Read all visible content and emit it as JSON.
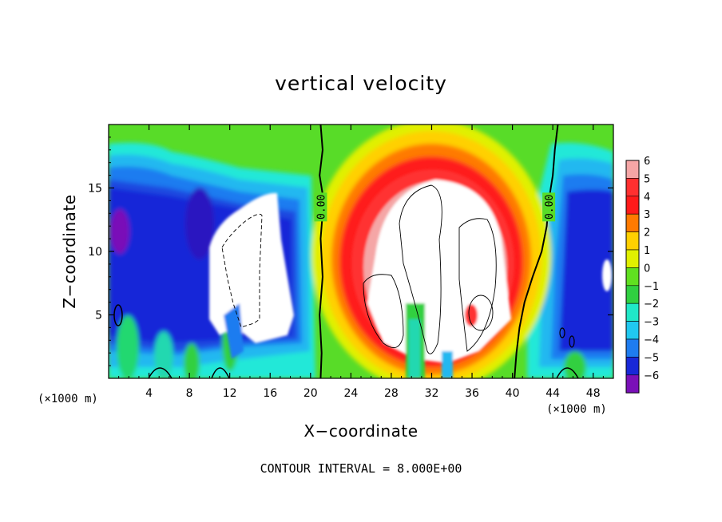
{
  "chart_data": {
    "type": "heatmap",
    "title": "vertical velocity",
    "xlabel": "X−coordinate",
    "ylabel": "Z−coordinate",
    "x_unit_label": "(×1000 m)",
    "x_unit_label_right": "(×1000 m)",
    "xlim": [
      0,
      50
    ],
    "ylim": [
      0,
      20
    ],
    "x_ticks": [
      4,
      8,
      12,
      16,
      20,
      24,
      28,
      32,
      36,
      40,
      44,
      48
    ],
    "x_tick_labels": [
      "4",
      "8",
      "12",
      "16",
      "20",
      "24",
      "28",
      "32",
      "36",
      "40",
      "44",
      "48"
    ],
    "y_ticks": [
      5,
      10,
      15
    ],
    "y_tick_labels": [
      "5",
      "10",
      "15"
    ],
    "colorbar": {
      "levels": [
        6,
        5,
        4,
        3,
        2,
        1,
        0,
        -1,
        -2,
        -3,
        -4,
        -5,
        -6
      ],
      "labels": [
        "6",
        "5",
        "4",
        "3",
        "2",
        "1",
        "0",
        "−1",
        "−2",
        "−3",
        "−4",
        "−5",
        "−6"
      ],
      "colors": [
        "#f5a6a6",
        "#ff3030",
        "#ff1a1a",
        "#ff7a00",
        "#ffd000",
        "#e0f000",
        "#60e020",
        "#30d040",
        "#20e8c8",
        "#20c8f0",
        "#1e7cf0",
        "#1828d8",
        "#7a10b8"
      ]
    },
    "contour_labels": [
      {
        "text": "0.00",
        "x": 21,
        "y": 13.5
      },
      {
        "text": "0.00",
        "x": 43.6,
        "y": 13.5
      }
    ],
    "zero_contours": [
      {
        "x": [
          21.0,
          21.2,
          20.9,
          21.3,
          21.0,
          21.2,
          20.9,
          21.1,
          21.0
        ],
        "z": [
          20,
          18,
          16,
          14,
          11,
          8,
          5,
          2,
          0
        ]
      },
      {
        "x": [
          44.5,
          44.2,
          44.0,
          43.6,
          43.4,
          42.9,
          42.0,
          41.2,
          40.7,
          40.4,
          40.2
        ],
        "z": [
          20,
          18,
          16,
          14,
          12,
          10,
          8,
          6,
          4,
          2,
          0
        ]
      }
    ],
    "contour_interval_text": "CONTOUR INTERVAL = 8.000E+00"
  }
}
